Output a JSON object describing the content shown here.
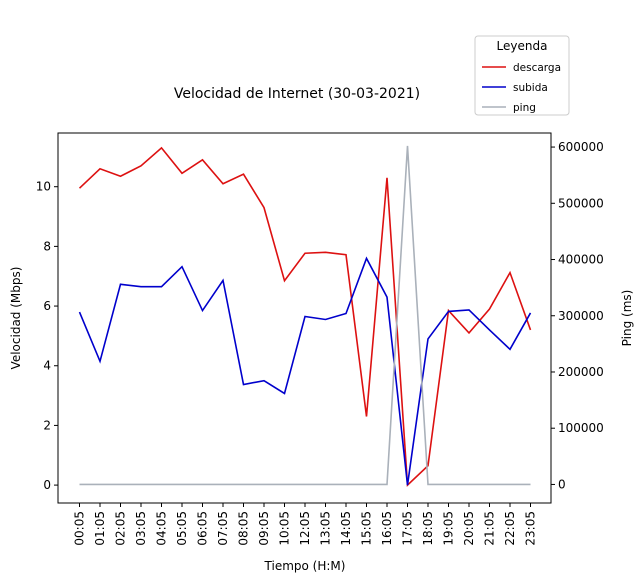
{
  "chart_data": {
    "type": "line",
    "title": "Velocidad de Internet (30-03-2021)",
    "xlabel": "Tiempo (H:M)",
    "ylabel": "Velocidad (Mbps)",
    "y2label": "Ping (ms)",
    "ylim": [
      -0.6,
      11.8
    ],
    "y2lim": [
      -33000,
      625000
    ],
    "yticks": [
      0,
      2,
      4,
      6,
      8,
      10
    ],
    "y2ticks": [
      0,
      100000,
      200000,
      300000,
      400000,
      500000,
      600000
    ],
    "categories": [
      "00:05",
      "01:05",
      "02:05",
      "03:05",
      "04:05",
      "05:05",
      "06:05",
      "07:05",
      "08:05",
      "09:05",
      "10:05",
      "12:05",
      "13:05",
      "14:05",
      "15:05",
      "16:05",
      "17:05",
      "18:05",
      "19:05",
      "20:05",
      "21:05",
      "22:05",
      "23:05"
    ],
    "legend": {
      "title": "Leyenda",
      "placement": "top-right, outside plot"
    },
    "series": [
      {
        "name": "descarga",
        "axis": "left",
        "color": "#dd1111",
        "values": [
          9.95,
          10.6,
          10.35,
          10.7,
          11.3,
          10.45,
          10.9,
          10.1,
          10.42,
          9.3,
          6.85,
          7.77,
          7.8,
          7.72,
          2.3,
          10.3,
          0.0,
          0.65,
          5.85,
          5.1,
          5.9,
          7.12,
          5.2
        ]
      },
      {
        "name": "subida",
        "axis": "left",
        "color": "#0000cc",
        "values": [
          5.8,
          4.15,
          6.73,
          6.65,
          6.65,
          7.32,
          5.85,
          6.86,
          3.37,
          3.5,
          3.07,
          5.65,
          5.55,
          5.75,
          7.6,
          6.3,
          0.0,
          4.9,
          5.82,
          5.87,
          5.2,
          4.55,
          5.77
        ]
      },
      {
        "name": "ping",
        "axis": "right",
        "color": "#aab1ba",
        "values": [
          0,
          0,
          0,
          0,
          0,
          0,
          0,
          0,
          0,
          0,
          0,
          0,
          0,
          0,
          0,
          0,
          602000,
          0,
          0,
          0,
          0,
          0,
          0
        ]
      }
    ]
  }
}
